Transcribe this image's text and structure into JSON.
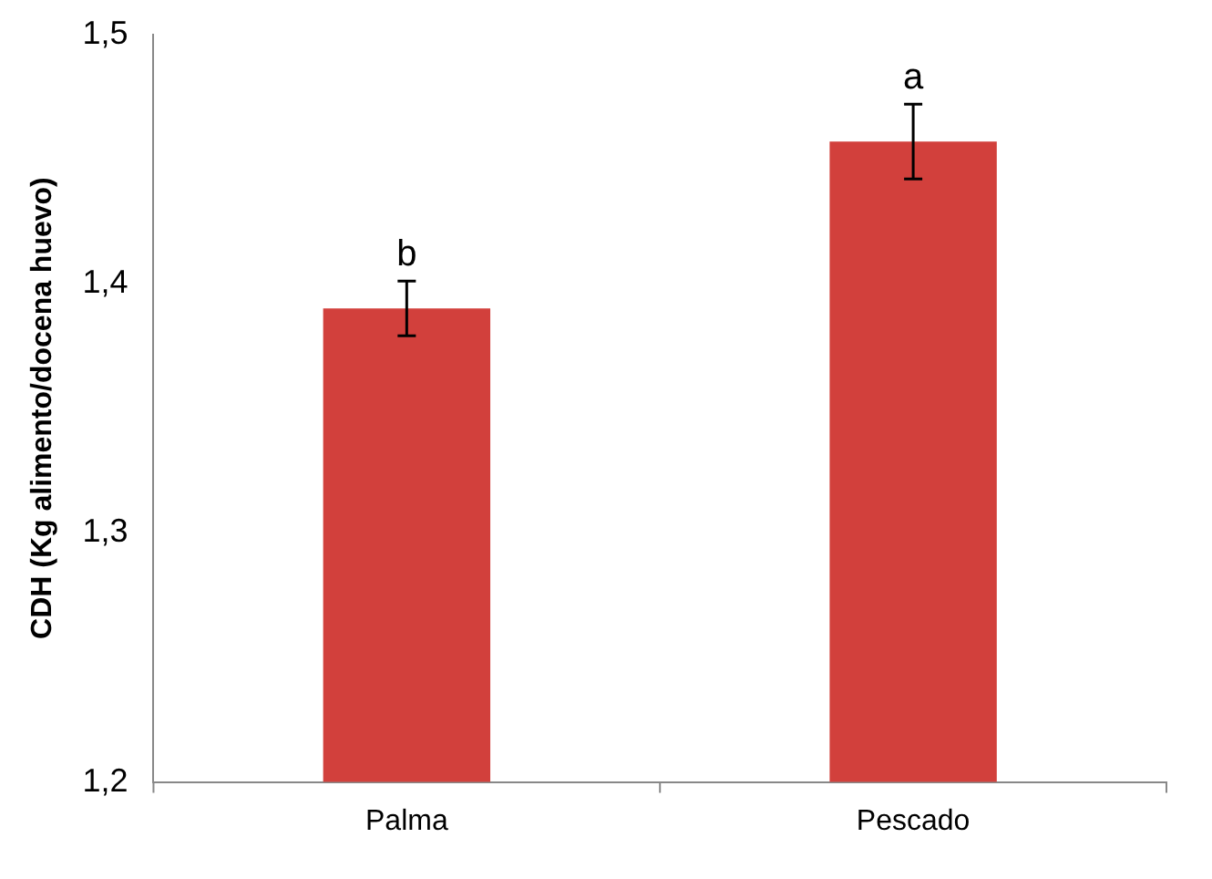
{
  "chart_data": {
    "type": "bar",
    "ylabel": "CDH (Kg alimento/docena huevo)",
    "categories": [
      "Palma",
      "Pescado"
    ],
    "values": [
      1.39,
      1.457
    ],
    "errors": [
      0.011,
      0.015
    ],
    "color": "#d2403c",
    "ylim": [
      1.2,
      1.5
    ],
    "yticks": [
      {
        "value": 1.2,
        "label": "1,2"
      },
      {
        "value": 1.3,
        "label": "1,3"
      },
      {
        "value": 1.4,
        "label": "1,4"
      },
      {
        "value": 1.5,
        "label": "1,5"
      }
    ],
    "annotations": [
      {
        "text": "b",
        "x": "Palma",
        "y": 1.401
      },
      {
        "text": "a",
        "x": "Pescado",
        "y": 1.472
      }
    ],
    "grid": false,
    "legend": false
  }
}
